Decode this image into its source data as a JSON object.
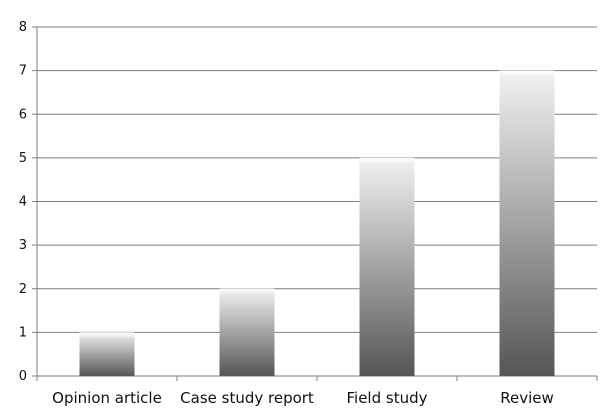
{
  "chart_data": {
    "type": "bar",
    "title": "",
    "xlabel": "",
    "ylabel": "",
    "categories": [
      "Opinion article",
      "Case study report",
      "Field study",
      "Review"
    ],
    "values": [
      1,
      2,
      5,
      7
    ],
    "ylim": [
      0,
      8
    ],
    "yticks": [
      "0",
      "1",
      "2",
      "3",
      "4",
      "5",
      "6",
      "7",
      "8"
    ],
    "grid": true,
    "legend": "none",
    "colors": {
      "bar_top": "#f2f2f2",
      "bar_bottom": "#555555",
      "grid": "#7f7f7f",
      "axis": "#7f7f7f"
    }
  }
}
